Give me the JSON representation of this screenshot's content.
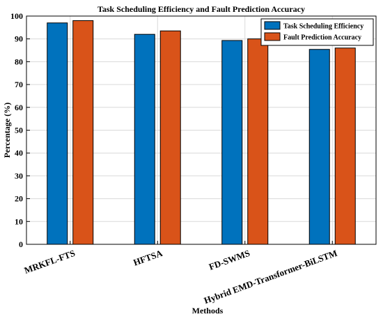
{
  "chart_data": {
    "type": "bar",
    "title": "Task Scheduling Efficiency and Fault Prediction Accuracy",
    "xlabel": "Methods",
    "ylabel": "Percentage (%)",
    "ylim": [
      0,
      100
    ],
    "yticks": [
      0,
      10,
      20,
      30,
      40,
      50,
      60,
      70,
      80,
      90,
      100
    ],
    "categories": [
      "MRKFL-FTS",
      "HFTSA",
      "FD-SWMS",
      "Hybrid EMD-Transformer-BiLSTM"
    ],
    "series": [
      {
        "name": "Task Scheduling Efficiency",
        "values": [
          97,
          92,
          89.3,
          85.4
        ],
        "color": "#0072BD"
      },
      {
        "name": "Fault Prediction Accuracy",
        "values": [
          98,
          93.5,
          90,
          86
        ],
        "color": "#D95319"
      }
    ],
    "grid": true,
    "legend_position": "top-right"
  }
}
